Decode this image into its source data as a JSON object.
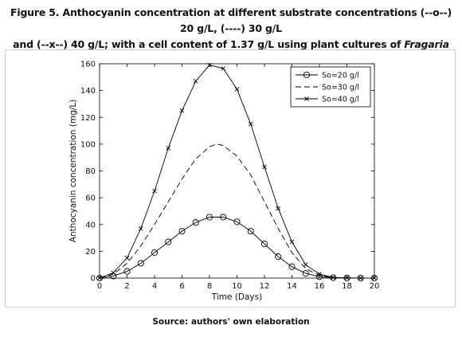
{
  "figure": {
    "caption_line1": "Figure 5. Anthocyanin concentration at different substrate concentrations (--o--) 20 g/L,  (----) 30 g/L",
    "caption_line2_prefix": "and (--x--) 40 g/L; with a cell content of  1.37 g/L using plant cultures of ",
    "caption_line2_italic": "Fragaria ananassa",
    "source": "Source: authors' own elaboration"
  },
  "chart_data": {
    "type": "line",
    "title": "",
    "xlabel": "Time (Days)",
    "ylabel": "Anthocyanin concentration (mg/L)",
    "xlim": [
      0,
      20
    ],
    "ylim": [
      0,
      160
    ],
    "xticks": [
      0,
      2,
      4,
      6,
      8,
      10,
      12,
      14,
      16,
      18,
      20
    ],
    "yticks": [
      0,
      20,
      40,
      60,
      80,
      100,
      120,
      140,
      160
    ],
    "grid": false,
    "legend_position": "top-right",
    "series": [
      {
        "name": "So=20 g/l",
        "style": "solid-circle-markers",
        "color": "#000000",
        "x": [
          0,
          1,
          2,
          3,
          4,
          5,
          6,
          7,
          8,
          9,
          10,
          11,
          12,
          13,
          14,
          15,
          16,
          17,
          18,
          19,
          20
        ],
        "y": [
          0,
          1.5,
          5,
          11,
          19,
          27,
          35,
          41.5,
          45.5,
          45.5,
          42,
          35,
          25.5,
          16,
          8.5,
          3.5,
          1,
          0.3,
          0.1,
          0,
          0
        ]
      },
      {
        "name": "So=30 g/l",
        "style": "dashed",
        "color": "#000000",
        "x": [
          0,
          1,
          2,
          3,
          4,
          5,
          6,
          7,
          8,
          8.5,
          9,
          10,
          11,
          12,
          13,
          14,
          15,
          16,
          17,
          18,
          19,
          20
        ],
        "y": [
          0,
          3,
          11,
          24,
          40,
          57,
          74,
          89,
          98,
          100,
          99,
          91,
          77,
          57,
          37,
          19,
          7,
          2,
          0.5,
          0.1,
          0,
          0
        ]
      },
      {
        "name": "So=40 g/l",
        "style": "solid-x-markers",
        "color": "#000000",
        "x": [
          0,
          1,
          2,
          3,
          4,
          5,
          6,
          7,
          8,
          9,
          10,
          11,
          12,
          13,
          14,
          15,
          16,
          17,
          18,
          19,
          20
        ],
        "y": [
          0,
          4,
          15,
          37,
          65,
          97,
          125,
          147,
          159,
          156.5,
          141,
          115,
          83,
          52,
          27,
          10,
          3,
          0.5,
          0.1,
          0,
          0
        ]
      }
    ]
  }
}
